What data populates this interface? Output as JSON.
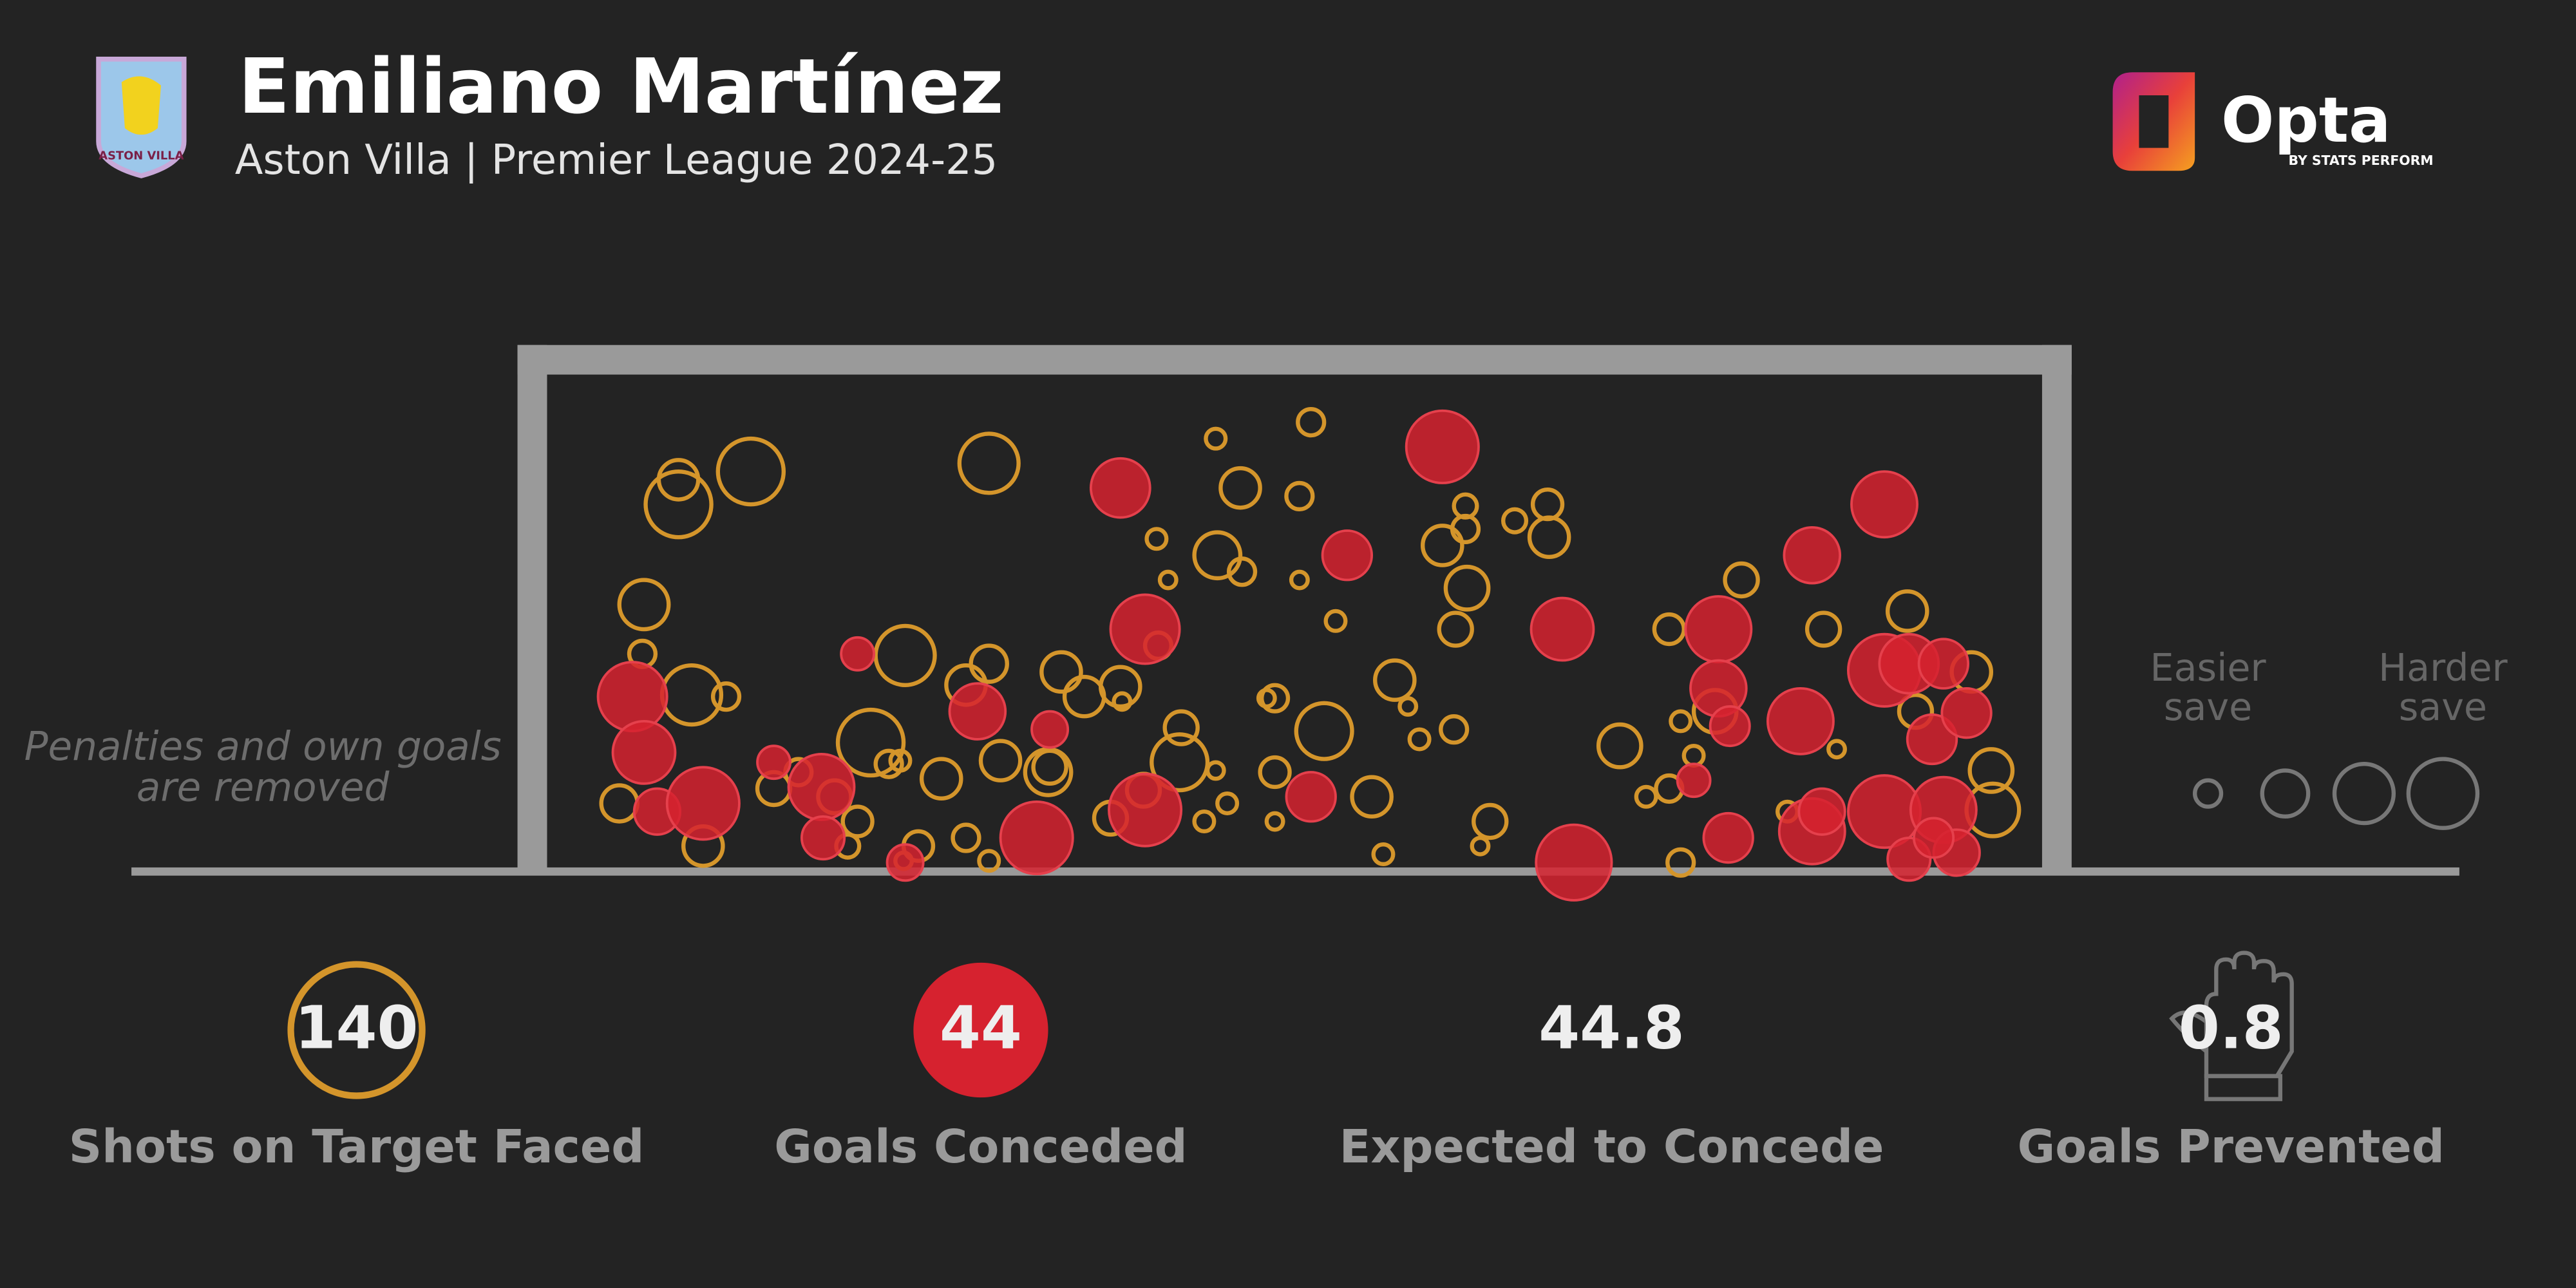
{
  "chart_data": {
    "type": "scatter",
    "title": "Emiliano Martínez",
    "subtitle": "Aston Villa | Premier League 2024-25",
    "crest": "ASTON VILLA",
    "brand": {
      "name": "Opta",
      "byline": "BY STATS PERFORM"
    },
    "note": [
      "Penalties and own goals",
      "are removed"
    ],
    "xlim": [
      0,
      910
    ],
    "ylim": [
      0,
      302
    ],
    "series": [
      {
        "color": "#d4952b",
        "filled": false,
        "x": [
          80,
          80,
          124,
          269,
          59,
          58,
          88,
          109,
          44,
          95,
          138,
          153,
          175,
          189,
          183,
          197,
          218,
          208,
          215,
          240,
          255,
          269,
          276,
          305,
          306,
          313,
          327,
          349,
          226,
          255,
          269,
          343,
          363,
          385,
          386,
          400,
          414,
          407,
          371,
          378,
          408,
          423,
          422,
          407,
          465,
          458,
          458,
          480,
          443,
          438,
          473,
          443,
          443,
          502,
          509,
          516,
          524,
          531,
          552,
          545,
          559,
          559,
          560,
          553,
          589,
          609,
          610,
          653,
          669,
          683,
          683,
          690,
          698,
          711,
          727,
          777,
          755,
          785,
          828,
          833,
          867,
          879,
          880,
          690,
          574,
          568,
          372,
          350,
          217
        ],
        "y": [
          223,
          238,
          243,
          248,
          162,
          132,
          107,
          106,
          41,
          15,
          50,
          60,
          45,
          30,
          15,
          78,
          131,
          65,
          67,
          56,
          113,
          126,
          67,
          60,
          63,
          121,
          106,
          112,
          15,
          20,
          6,
          32,
          49,
          66,
          87,
          30,
          41,
          61,
          202,
          177,
          192,
          182,
          233,
          263,
          273,
          228,
          177,
          152,
          105,
          105,
          85,
          60,
          30,
          45,
          10,
          116,
          100,
          80,
          86,
          198,
          222,
          208,
          172,
          147,
          213,
          223,
          203,
          76,
          45,
          50,
          147,
          91,
          70,
          97,
          177,
          147,
          36,
          74,
          158,
          97,
          121,
          61,
          37,
          5,
          30,
          15,
          137,
          103,
          6
        ],
        "r": [
          20,
          12,
          20,
          18,
          15,
          8,
          18,
          8,
          11,
          12,
          10,
          8,
          10,
          9,
          7,
          20,
          18,
          8,
          6,
          12,
          12,
          11,
          12,
          14,
          10,
          12,
          12,
          12,
          9,
          8,
          6,
          10,
          10,
          17,
          10,
          6,
          6,
          5,
          6,
          5,
          14,
          8,
          12,
          6,
          8,
          8,
          5,
          6,
          8,
          5,
          17,
          9,
          5,
          12,
          6,
          12,
          5,
          6,
          8,
          12,
          7,
          8,
          13,
          10,
          7,
          9,
          12,
          13,
          6,
          8,
          9,
          6,
          6,
          13,
          10,
          10,
          6,
          5,
          12,
          10,
          12,
          13,
          16,
          8,
          10,
          5,
          8,
          5,
          5
        ]
      },
      {
        "color": "#d6222f",
        "filled": true,
        "x": [
          545,
          349,
          487,
          364,
          189,
          52,
          59,
          67,
          95,
          138,
          167,
          168,
          218,
          262,
          306,
          298,
          364,
          465,
          618,
          625,
          713,
          713,
          720,
          698,
          719,
          763,
          770,
          814,
          814,
          829,
          850,
          843,
          864,
          770,
          776,
          814,
          850,
          829,
          858,
          844
        ],
        "y": [
          258,
          233,
          192,
          147,
          132,
          106,
          72,
          36,
          41,
          66,
          51,
          20,
          5,
          97,
          86,
          20,
          37,
          45,
          147,
          5,
          147,
          111,
          88,
          55,
          20,
          91,
          192,
          223,
          122,
          126,
          126,
          80,
          96,
          24,
          36,
          36,
          37,
          7,
          11,
          20
        ],
        "r": [
          22,
          18,
          15,
          21,
          10,
          21,
          19,
          14,
          22,
          10,
          20,
          13,
          11,
          17,
          11,
          22,
          22,
          15,
          19,
          23,
          20,
          17,
          12,
          10,
          15,
          20,
          17,
          20,
          22,
          18,
          15,
          15,
          15,
          20,
          14,
          22,
          20,
          13,
          14,
          12
        ]
      }
    ],
    "legend": {
      "easier": [
        "Easier",
        "save"
      ],
      "harder": [
        "Harder",
        "save"
      ],
      "sizes": [
        8,
        14,
        18,
        21
      ]
    },
    "stats": [
      {
        "value": 140,
        "label": "Shots on Target Faced"
      },
      {
        "value": 44,
        "label": "Goals Conceded"
      },
      {
        "value": 44.8,
        "label": "Expected to Concede"
      },
      {
        "value": 0.8,
        "label": "Goals Prevented"
      }
    ]
  }
}
